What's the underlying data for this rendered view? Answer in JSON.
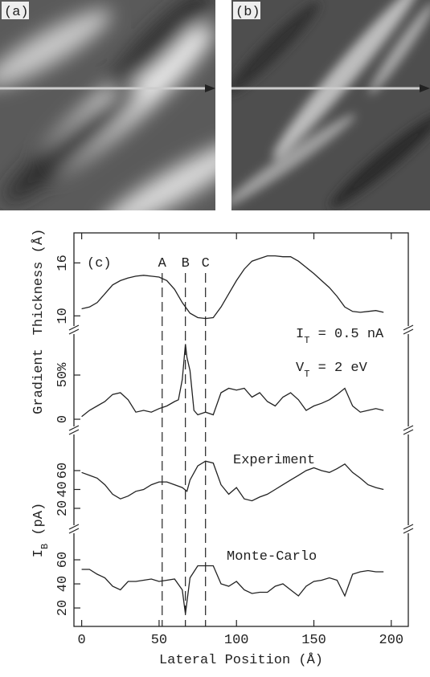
{
  "images": {
    "a_label": "(a)",
    "b_label": "(b)"
  },
  "chart_data": [
    {
      "type": "line",
      "ylabel": "Thickness (Å)",
      "xlim": [
        -5,
        211
      ],
      "ylim": [
        8.3,
        19.4
      ],
      "yticks": [
        10,
        16
      ],
      "annotations": [
        {
          "text": "(c)"
        },
        {
          "text": "I",
          "sub": "T",
          "after": " = 0.5 nA"
        },
        {
          "text": "V",
          "sub": "T",
          "after": " = 2 eV"
        }
      ],
      "markers": [
        {
          "label": "A",
          "x": 52
        },
        {
          "label": "B",
          "x": 67
        },
        {
          "label": "C",
          "x": 80
        }
      ],
      "x": [
        0,
        5,
        10,
        15,
        20,
        25,
        30,
        35,
        40,
        45,
        50,
        55,
        60,
        65,
        70,
        75,
        80,
        85,
        90,
        95,
        100,
        105,
        110,
        115,
        120,
        125,
        130,
        135,
        140,
        145,
        150,
        155,
        160,
        165,
        170,
        175,
        180,
        185,
        190,
        195
      ],
      "series": [
        {
          "color": "#222222",
          "values": [
            10.8,
            11,
            11.5,
            12.5,
            13.5,
            14,
            14.3,
            14.5,
            14.6,
            14.5,
            14.4,
            14,
            13,
            11.5,
            10.3,
            9.8,
            9.7,
            9.8,
            11,
            12.5,
            14,
            15.3,
            16.2,
            16.5,
            16.8,
            16.8,
            16.7,
            16.7,
            16.2,
            15.5,
            14.8,
            14,
            13.2,
            12.2,
            11,
            10.5,
            10.4,
            10.5,
            10.6,
            10.4
          ]
        }
      ]
    },
    {
      "type": "line",
      "ylabel": "Gradient",
      "xlim": [
        -5,
        211
      ],
      "ylim": [
        -13.6,
        100
      ],
      "yticks": [
        0,
        {
          "value": 50,
          "label": "50%"
        }
      ],
      "x": [
        0,
        5,
        10,
        15,
        20,
        25,
        30,
        35,
        40,
        45,
        50,
        55,
        60,
        62.5,
        65,
        67,
        68,
        70,
        72.5,
        75,
        80,
        85,
        90,
        95,
        100,
        105,
        110,
        115,
        120,
        125,
        130,
        135,
        140,
        145,
        150,
        155,
        160,
        165,
        170,
        175,
        180,
        185,
        190,
        195
      ],
      "series": [
        {
          "color": "#222222",
          "values": [
            3,
            10,
            15,
            20,
            28,
            30,
            22,
            8,
            10,
            8,
            12,
            15,
            20,
            22,
            45,
            85,
            70,
            55,
            10,
            5,
            8,
            5,
            30,
            35,
            33,
            35,
            25,
            30,
            20,
            15,
            25,
            30,
            22,
            10,
            15,
            18,
            22,
            28,
            35,
            15,
            8,
            10,
            12,
            10
          ]
        }
      ]
    },
    {
      "type": "line",
      "ylabel": {
        "text": "I",
        "sub": "B",
        "after": " (pA)"
      },
      "xlim": [
        -5,
        211
      ],
      "ylim": [
        -3,
        101.7
      ],
      "yticks": [
        20,
        40,
        60
      ],
      "x": [
        0,
        5,
        10,
        15,
        20,
        25,
        30,
        35,
        40,
        45,
        50,
        55,
        60,
        65,
        68,
        70,
        75,
        80,
        85,
        90,
        95,
        100,
        105,
        110,
        115,
        120,
        125,
        130,
        135,
        140,
        145,
        150,
        155,
        160,
        165,
        170,
        175,
        180,
        185,
        190,
        195
      ],
      "series": [
        {
          "name": "Experiment",
          "color": "#222222",
          "values": [
            58,
            55,
            52,
            45,
            35,
            30,
            33,
            38,
            40,
            45,
            48,
            48,
            45,
            42,
            38,
            50,
            65,
            70,
            68,
            45,
            35,
            42,
            30,
            28,
            32,
            35,
            40,
            45,
            50,
            55,
            60,
            63,
            60,
            58,
            62,
            67,
            58,
            52,
            45,
            42,
            40
          ]
        }
      ]
    },
    {
      "type": "line",
      "xlabel": "Lateral Position (Å)",
      "xlim": [
        -5,
        211
      ],
      "ylim": [
        4.7,
        84.7
      ],
      "yticks": [
        20,
        40,
        60
      ],
      "xticks": [
        0,
        50,
        100,
        150,
        200
      ],
      "x": [
        0,
        5,
        10,
        15,
        20,
        25,
        30,
        35,
        40,
        45,
        50,
        55,
        60,
        65,
        67,
        68,
        70,
        75,
        80,
        85,
        90,
        95,
        100,
        105,
        110,
        115,
        120,
        125,
        130,
        135,
        140,
        145,
        150,
        155,
        160,
        165,
        170,
        175,
        180,
        185,
        190,
        195
      ],
      "series": [
        {
          "name": "Monte-Carlo",
          "color": "#222222",
          "values": [
            52,
            52,
            48,
            45,
            38,
            35,
            42,
            42,
            43,
            44,
            42,
            43,
            44,
            35,
            15,
            25,
            45,
            55,
            55,
            55,
            40,
            38,
            42,
            35,
            32,
            33,
            33,
            38,
            40,
            35,
            30,
            38,
            42,
            43,
            45,
            43,
            30,
            48,
            50,
            51,
            50,
            50
          ]
        }
      ]
    }
  ]
}
